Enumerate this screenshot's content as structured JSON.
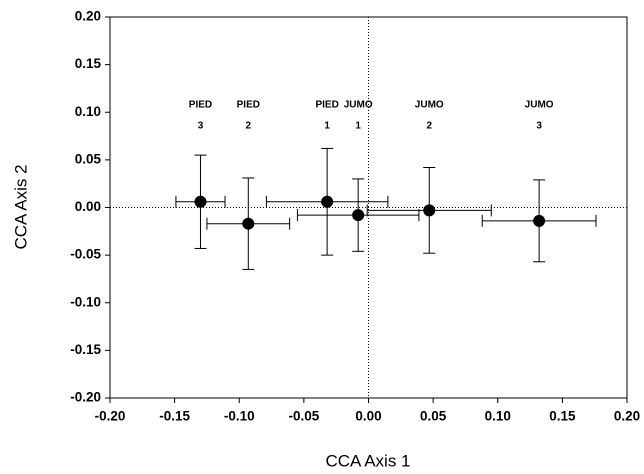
{
  "chart_data": {
    "type": "scatter",
    "xlabel": "CCA Axis 1",
    "ylabel": "CCA Axis 2",
    "xlim": [
      -0.2,
      0.2
    ],
    "ylim": [
      -0.2,
      0.2
    ],
    "xticks": [
      {
        "value": -0.2,
        "label": "-0.20"
      },
      {
        "value": -0.15,
        "label": "-0.15"
      },
      {
        "value": -0.1,
        "label": "-0.10"
      },
      {
        "value": -0.05,
        "label": "-0.05"
      },
      {
        "value": 0,
        "label": "0.00"
      },
      {
        "value": 0.05,
        "label": "0.05"
      },
      {
        "value": 0.1,
        "label": "0.10"
      },
      {
        "value": 0.15,
        "label": "0.15"
      },
      {
        "value": 0.2,
        "label": "0.20"
      }
    ],
    "yticks": [
      {
        "value": -0.2,
        "label": "-0.20"
      },
      {
        "value": -0.15,
        "label": "-0.15"
      },
      {
        "value": -0.1,
        "label": "-0.10"
      },
      {
        "value": -0.05,
        "label": "-0.05"
      },
      {
        "value": 0,
        "label": "0.00"
      },
      {
        "value": 0.05,
        "label": "0.05"
      },
      {
        "value": 0.1,
        "label": "0.10"
      },
      {
        "value": 0.15,
        "label": "0.15"
      },
      {
        "value": 0.2,
        "label": "0.20"
      }
    ],
    "zero_lines": true,
    "color": "#000000",
    "point_labels": [
      [
        "PIED",
        "3"
      ],
      [
        "PIED",
        "2"
      ],
      [
        "PIED",
        "1"
      ],
      [
        "JUMO",
        "1"
      ],
      [
        "JUMO",
        "2"
      ],
      [
        "JUMO",
        "3"
      ]
    ],
    "x": [
      -0.13,
      -0.093,
      -0.032,
      -0.008,
      0.047,
      0.132
    ],
    "y": [
      0.006,
      -0.017,
      0.006,
      -0.008,
      -0.003,
      -0.014
    ],
    "xerr": [
      0.019,
      0.032,
      0.047,
      0.047,
      0.048,
      0.044
    ],
    "yerr": [
      0.049,
      0.048,
      0.056,
      0.038,
      0.045,
      0.043
    ]
  }
}
